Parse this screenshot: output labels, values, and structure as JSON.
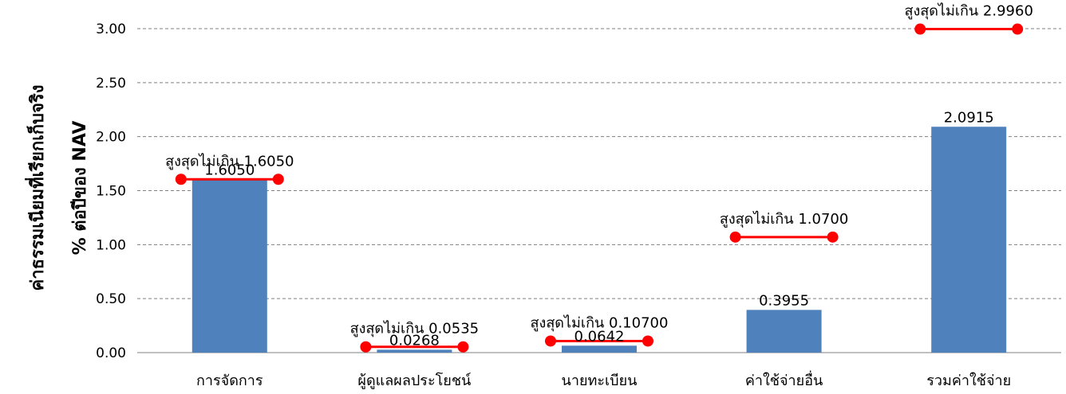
{
  "chart_data": {
    "type": "bar",
    "categories": [
      "การจัดการ",
      "ผู้ดูแลผลประโยชน์",
      "นายทะเบียน",
      "ค่าใช้จ่ายอื่น",
      "รวมค่าใช้จ่าย"
    ],
    "series": [
      {
        "values": [
          1.605,
          0.0268,
          0.0642,
          0.3955,
          2.0915
        ],
        "color": "#4f81bd"
      }
    ],
    "value_labels": [
      "1.6050",
      "0.0268",
      "0.0642",
      "0.3955",
      "2.0915"
    ],
    "max_values": [
      1.605,
      0.0535,
      0.107,
      1.07,
      2.996
    ],
    "max_labels": [
      "สูงสุดไม่เกิน 1.6050",
      "สูงสุดไม่เกิน 0.0535",
      "สูงสุดไม่เกิน 0.10700",
      "สูงสุดไม่เกิน 1.0700",
      "สูงสุดไม่เกิน 2.9960"
    ],
    "max_color": "#ff0000",
    "ylabel_line1": "ค่าธรรมเนียมที่เรียกเก็บจริง",
    "ylabel_line2": "% ต่อปีของ NAV",
    "ylim": [
      0,
      3.0
    ],
    "yticks": [
      "0.00",
      "0.50",
      "1.00",
      "1.50",
      "2.00",
      "2.50",
      "3.00"
    ],
    "grid": true
  }
}
